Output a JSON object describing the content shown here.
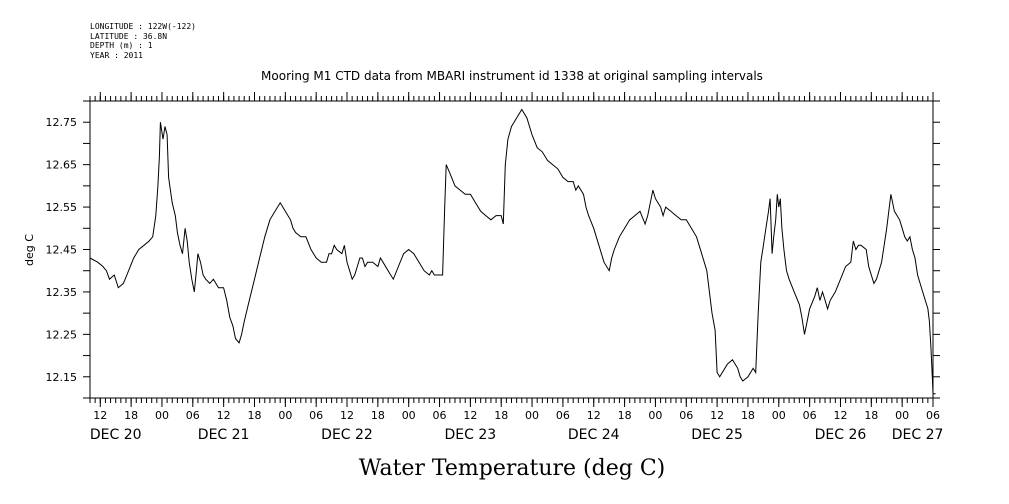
{
  "header_meta": [
    "LONGITUDE : 122W(-122)",
    "LATITUDE : 36.8N",
    "DEPTH (m) : 1",
    "YEAR : 2011"
  ],
  "chart_data": {
    "type": "line",
    "title": "Mooring M1 CTD data from MBARI instrument id 1338 at original sampling intervals",
    "xlabel": "Water Temperature (deg C)",
    "ylabel": "deg C",
    "x_unit": "hours since DEC 20 00:00",
    "xlim": [
      -14,
      150
    ],
    "ylim": [
      12.1,
      12.8
    ],
    "yticks": [
      12.15,
      12.25,
      12.35,
      12.45,
      12.55,
      12.65,
      12.75
    ],
    "hour_ticks": [
      {
        "h": -12,
        "label": "12"
      },
      {
        "h": -6,
        "label": "18"
      },
      {
        "h": 0,
        "label": "00"
      },
      {
        "h": 6,
        "label": "06"
      },
      {
        "h": 12,
        "label": "12"
      },
      {
        "h": 18,
        "label": "18"
      },
      {
        "h": 24,
        "label": "00"
      },
      {
        "h": 30,
        "label": "06"
      },
      {
        "h": 36,
        "label": "12"
      },
      {
        "h": 42,
        "label": "18"
      },
      {
        "h": 48,
        "label": "00"
      },
      {
        "h": 54,
        "label": "06"
      },
      {
        "h": 60,
        "label": "12"
      },
      {
        "h": 66,
        "label": "18"
      },
      {
        "h": 72,
        "label": "00"
      },
      {
        "h": 78,
        "label": "06"
      },
      {
        "h": 84,
        "label": "12"
      },
      {
        "h": 90,
        "label": "18"
      },
      {
        "h": 96,
        "label": "00"
      },
      {
        "h": 102,
        "label": "06"
      },
      {
        "h": 108,
        "label": "12"
      },
      {
        "h": 114,
        "label": "18"
      },
      {
        "h": 120,
        "label": "00"
      },
      {
        "h": 126,
        "label": "06"
      },
      {
        "h": 132,
        "label": "12"
      },
      {
        "h": 138,
        "label": "18"
      },
      {
        "h": 144,
        "label": "00"
      },
      {
        "h": 150,
        "label": "06"
      }
    ],
    "day_labels": [
      {
        "h": -9,
        "label": "DEC 20"
      },
      {
        "h": 12,
        "label": "DEC 21"
      },
      {
        "h": 36,
        "label": "DEC 22"
      },
      {
        "h": 60,
        "label": "DEC 23"
      },
      {
        "h": 84,
        "label": "DEC 24"
      },
      {
        "h": 108,
        "label": "DEC 25"
      },
      {
        "h": 132,
        "label": "DEC 26"
      },
      {
        "h": 147,
        "label": "DEC 27"
      }
    ],
    "series": [
      {
        "color": "#000000",
        "points": [
          [
            -14,
            12.43
          ],
          [
            -12.5,
            12.42
          ],
          [
            -11.5,
            12.41
          ],
          [
            -10.8,
            12.4
          ],
          [
            -10.2,
            12.38
          ],
          [
            -9.3,
            12.39
          ],
          [
            -8.5,
            12.36
          ],
          [
            -7.5,
            12.37
          ],
          [
            -6.5,
            12.4
          ],
          [
            -5.5,
            12.43
          ],
          [
            -4.5,
            12.45
          ],
          [
            -3.5,
            12.46
          ],
          [
            -2.5,
            12.47
          ],
          [
            -1.8,
            12.48
          ],
          [
            -1.2,
            12.53
          ],
          [
            -0.8,
            12.6
          ],
          [
            -0.5,
            12.67
          ],
          [
            -0.3,
            12.75
          ],
          [
            0.2,
            12.71
          ],
          [
            0.6,
            12.74
          ],
          [
            1.0,
            12.72
          ],
          [
            1.3,
            12.62
          ],
          [
            2.0,
            12.56
          ],
          [
            2.6,
            12.53
          ],
          [
            3.0,
            12.49
          ],
          [
            3.5,
            12.46
          ],
          [
            4.0,
            12.44
          ],
          [
            4.5,
            12.5
          ],
          [
            4.9,
            12.47
          ],
          [
            5.3,
            12.42
          ],
          [
            5.8,
            12.38
          ],
          [
            6.3,
            12.35
          ],
          [
            6.7,
            12.4
          ],
          [
            7.0,
            12.44
          ],
          [
            7.5,
            12.42
          ],
          [
            8.0,
            12.39
          ],
          [
            8.5,
            12.38
          ],
          [
            9.3,
            12.37
          ],
          [
            10.0,
            12.38
          ],
          [
            11.0,
            12.36
          ],
          [
            12.0,
            12.36
          ],
          [
            12.6,
            12.33
          ],
          [
            13.2,
            12.29
          ],
          [
            13.8,
            12.27
          ],
          [
            14.3,
            12.24
          ],
          [
            15.0,
            12.23
          ],
          [
            15.5,
            12.25
          ],
          [
            16.0,
            12.28
          ],
          [
            17.0,
            12.33
          ],
          [
            18.0,
            12.38
          ],
          [
            19.0,
            12.43
          ],
          [
            20.0,
            12.48
          ],
          [
            21.0,
            12.52
          ],
          [
            22.0,
            12.54
          ],
          [
            23.0,
            12.56
          ],
          [
            24.0,
            12.54
          ],
          [
            25.0,
            12.52
          ],
          [
            25.5,
            12.5
          ],
          [
            26.0,
            12.49
          ],
          [
            27.0,
            12.48
          ],
          [
            28.0,
            12.48
          ],
          [
            29.0,
            12.45
          ],
          [
            30.0,
            12.43
          ],
          [
            31.0,
            12.42
          ],
          [
            32.0,
            12.42
          ],
          [
            32.5,
            12.44
          ],
          [
            33.0,
            12.44
          ],
          [
            33.5,
            12.46
          ],
          [
            34.0,
            12.45
          ],
          [
            35.0,
            12.44
          ],
          [
            35.5,
            12.46
          ],
          [
            36.0,
            12.42
          ],
          [
            36.5,
            12.4
          ],
          [
            37.0,
            12.38
          ],
          [
            37.5,
            12.39
          ],
          [
            38.0,
            12.41
          ],
          [
            38.5,
            12.43
          ],
          [
            39.0,
            12.43
          ],
          [
            39.5,
            12.41
          ],
          [
            40.0,
            12.42
          ],
          [
            41.0,
            12.42
          ],
          [
            42.0,
            12.41
          ],
          [
            42.5,
            12.43
          ],
          [
            43.0,
            12.42
          ],
          [
            44.0,
            12.4
          ],
          [
            45.0,
            12.38
          ],
          [
            46.0,
            12.41
          ],
          [
            47.0,
            12.44
          ],
          [
            48.0,
            12.45
          ],
          [
            49.0,
            12.44
          ],
          [
            50.0,
            12.42
          ],
          [
            51.0,
            12.4
          ],
          [
            52.0,
            12.39
          ],
          [
            52.5,
            12.4
          ],
          [
            53.0,
            12.39
          ],
          [
            53.5,
            12.39
          ],
          [
            54.0,
            12.39
          ],
          [
            54.6,
            12.39
          ],
          [
            55.0,
            12.55
          ],
          [
            55.3,
            12.65
          ],
          [
            56.0,
            12.63
          ],
          [
            57.0,
            12.6
          ],
          [
            58.0,
            12.59
          ],
          [
            59.0,
            12.58
          ],
          [
            60.0,
            12.58
          ],
          [
            61.0,
            12.56
          ],
          [
            62.0,
            12.54
          ],
          [
            63.0,
            12.53
          ],
          [
            64.0,
            12.52
          ],
          [
            65.0,
            12.53
          ],
          [
            66.0,
            12.53
          ],
          [
            66.4,
            12.51
          ],
          [
            66.8,
            12.65
          ],
          [
            67.3,
            12.71
          ],
          [
            68.0,
            12.74
          ],
          [
            69.0,
            12.76
          ],
          [
            70.0,
            12.78
          ],
          [
            71.0,
            12.76
          ],
          [
            72.0,
            12.72
          ],
          [
            73.0,
            12.69
          ],
          [
            74.0,
            12.68
          ],
          [
            75.0,
            12.66
          ],
          [
            76.0,
            12.65
          ],
          [
            77.0,
            12.64
          ],
          [
            78.0,
            12.62
          ],
          [
            79.0,
            12.61
          ],
          [
            80.0,
            12.61
          ],
          [
            80.5,
            12.59
          ],
          [
            81.0,
            12.6
          ],
          [
            82.0,
            12.58
          ],
          [
            82.5,
            12.55
          ],
          [
            83.0,
            12.53
          ],
          [
            84.0,
            12.5
          ],
          [
            85.0,
            12.46
          ],
          [
            86.0,
            12.42
          ],
          [
            87.0,
            12.4
          ],
          [
            87.5,
            12.43
          ],
          [
            88.0,
            12.45
          ],
          [
            89.0,
            12.48
          ],
          [
            90.0,
            12.5
          ],
          [
            91.0,
            12.52
          ],
          [
            92.0,
            12.53
          ],
          [
            93.0,
            12.54
          ],
          [
            94.0,
            12.51
          ],
          [
            94.5,
            12.53
          ],
          [
            95.0,
            12.56
          ],
          [
            95.5,
            12.59
          ],
          [
            96.0,
            12.57
          ],
          [
            97.0,
            12.55
          ],
          [
            97.5,
            12.53
          ],
          [
            98.0,
            12.55
          ],
          [
            99.0,
            12.54
          ],
          [
            100.0,
            12.53
          ],
          [
            101.0,
            12.52
          ],
          [
            102.0,
            12.52
          ],
          [
            103.0,
            12.5
          ],
          [
            104.0,
            12.48
          ],
          [
            104.5,
            12.46
          ],
          [
            105.0,
            12.44
          ],
          [
            106.0,
            12.4
          ],
          [
            107.0,
            12.3
          ],
          [
            107.6,
            12.26
          ],
          [
            108.0,
            12.16
          ],
          [
            108.5,
            12.15
          ],
          [
            109.0,
            12.16
          ],
          [
            110.0,
            12.18
          ],
          [
            111.0,
            12.19
          ],
          [
            112.0,
            12.17
          ],
          [
            112.5,
            12.15
          ],
          [
            113.0,
            12.14
          ],
          [
            114.0,
            12.15
          ],
          [
            115.0,
            12.17
          ],
          [
            115.5,
            12.16
          ],
          [
            116.0,
            12.3
          ],
          [
            116.5,
            12.42
          ],
          [
            117.0,
            12.46
          ],
          [
            117.5,
            12.5
          ],
          [
            118.0,
            12.54
          ],
          [
            118.3,
            12.57
          ],
          [
            118.7,
            12.44
          ],
          [
            119.0,
            12.48
          ],
          [
            119.4,
            12.52
          ],
          [
            119.7,
            12.58
          ],
          [
            120.0,
            12.55
          ],
          [
            120.3,
            12.57
          ],
          [
            120.6,
            12.5
          ],
          [
            121.0,
            12.45
          ],
          [
            121.5,
            12.4
          ],
          [
            122.0,
            12.38
          ],
          [
            123.0,
            12.35
          ],
          [
            124.0,
            12.32
          ],
          [
            124.5,
            12.29
          ],
          [
            125.0,
            12.25
          ],
          [
            125.5,
            12.28
          ],
          [
            126.0,
            12.31
          ],
          [
            127.0,
            12.34
          ],
          [
            127.5,
            12.36
          ],
          [
            128.0,
            12.33
          ],
          [
            128.5,
            12.35
          ],
          [
            129.0,
            12.33
          ],
          [
            129.5,
            12.31
          ],
          [
            130.0,
            12.33
          ],
          [
            131.0,
            12.35
          ],
          [
            132.0,
            12.38
          ],
          [
            133.0,
            12.41
          ],
          [
            134.0,
            12.42
          ],
          [
            134.5,
            12.47
          ],
          [
            135.0,
            12.45
          ],
          [
            135.5,
            12.46
          ],
          [
            136.0,
            12.46
          ],
          [
            137.0,
            12.45
          ],
          [
            137.5,
            12.41
          ],
          [
            138.0,
            12.39
          ],
          [
            138.5,
            12.37
          ],
          [
            139.0,
            12.38
          ],
          [
            140.0,
            12.42
          ],
          [
            141.0,
            12.5
          ],
          [
            141.5,
            12.55
          ],
          [
            141.8,
            12.58
          ],
          [
            142.5,
            12.54
          ],
          [
            143.5,
            12.52
          ],
          [
            144.0,
            12.5
          ],
          [
            144.5,
            12.48
          ],
          [
            145.0,
            12.47
          ],
          [
            145.5,
            12.48
          ],
          [
            146.0,
            12.45
          ],
          [
            146.5,
            12.43
          ],
          [
            147.0,
            12.39
          ],
          [
            147.5,
            12.37
          ],
          [
            148.0,
            12.35
          ],
          [
            148.5,
            12.33
          ],
          [
            149.0,
            12.31
          ],
          [
            149.3,
            12.28
          ],
          [
            149.6,
            12.22
          ],
          [
            149.9,
            12.14
          ],
          [
            150.0,
            12.11
          ],
          [
            150.5,
            12.11
          ]
        ]
      }
    ]
  }
}
